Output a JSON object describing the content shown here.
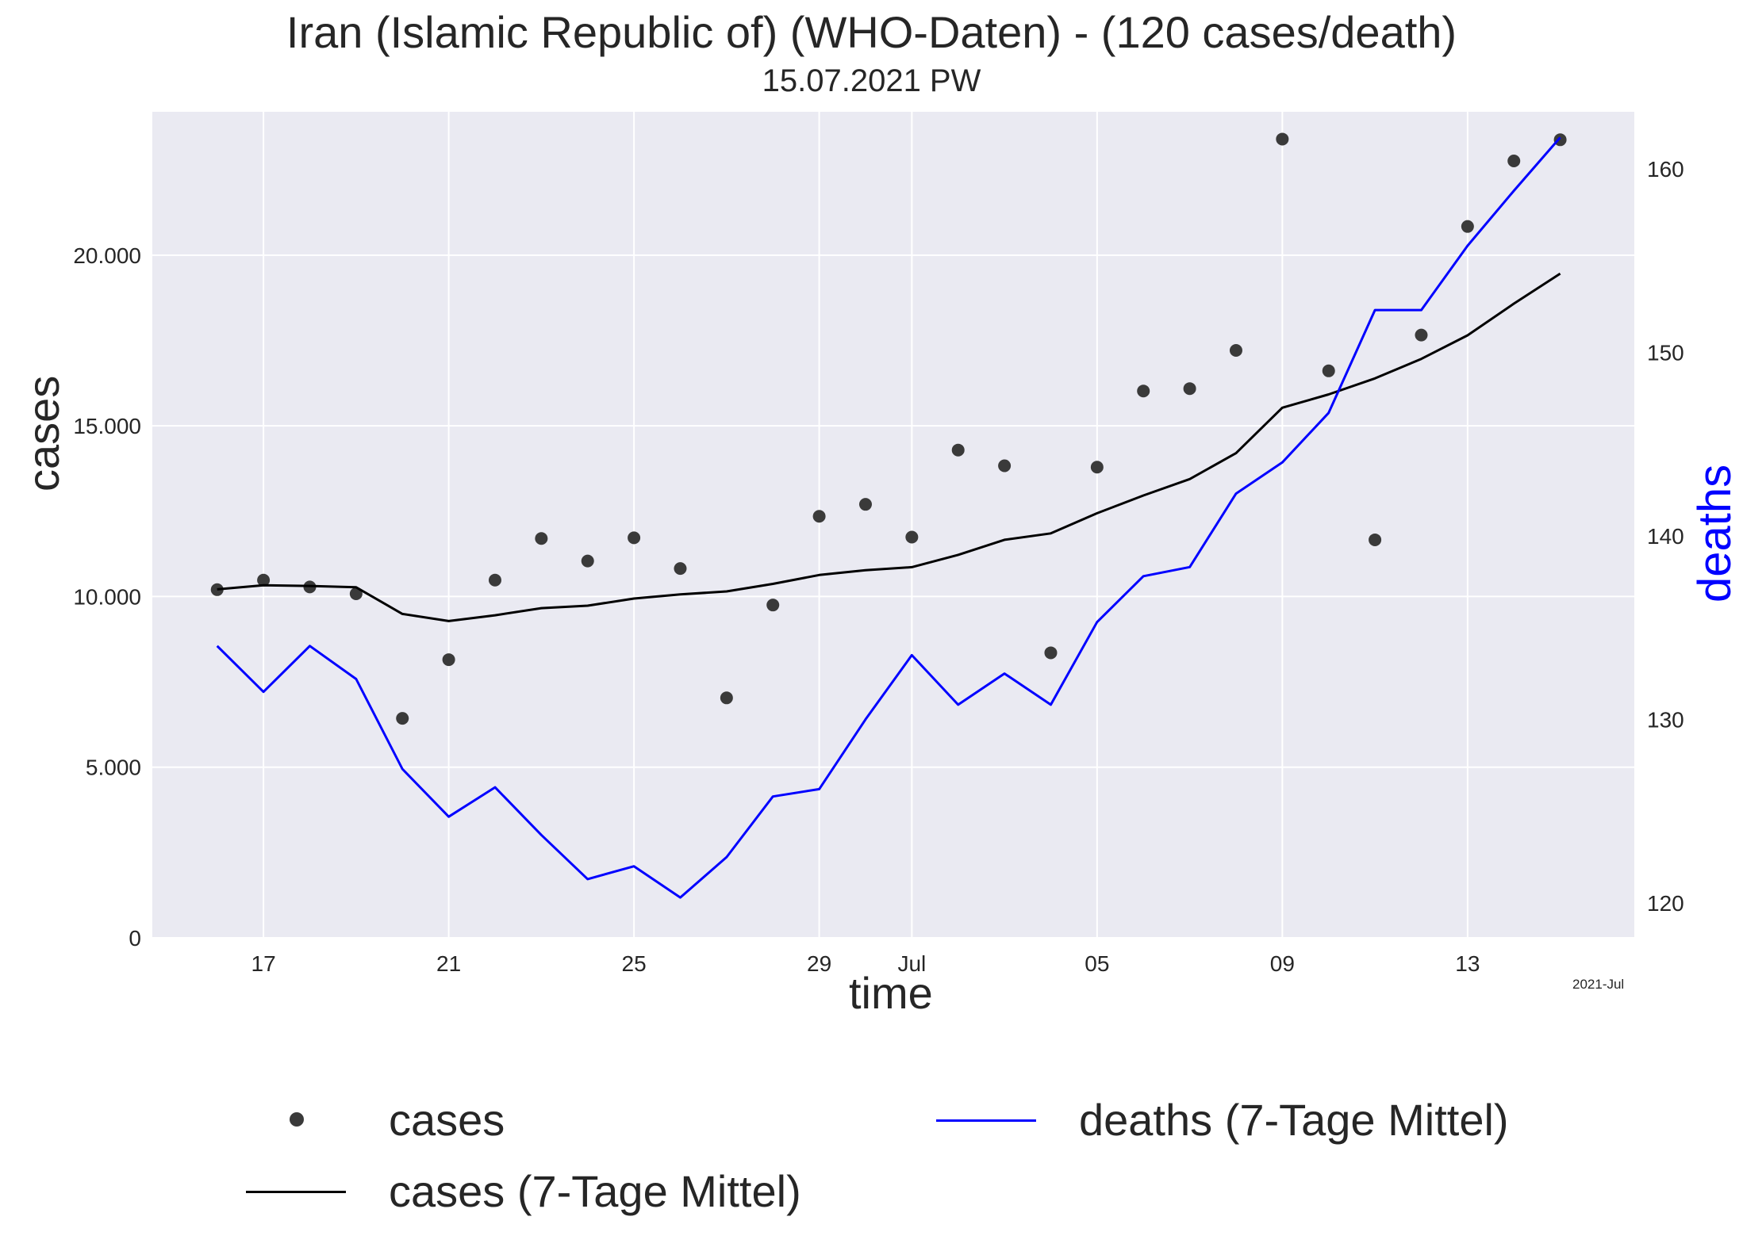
{
  "chart_data": {
    "type": "line",
    "title": "Iran (Islamic Republic of) (WHO-Daten) - (120 cases/death)",
    "subtitle": "15.07.2021 PW",
    "xlabel": "time",
    "ylabel": "cases",
    "y2label": "deaths",
    "x_corner_label": "2021-Jul",
    "grid": true,
    "legend_position": "bottom",
    "x_start_day_offset": 0,
    "x_dates": [
      "2021-06-16",
      "2021-06-17",
      "2021-06-18",
      "2021-06-19",
      "2021-06-20",
      "2021-06-21",
      "2021-06-22",
      "2021-06-23",
      "2021-06-24",
      "2021-06-25",
      "2021-06-26",
      "2021-06-27",
      "2021-06-28",
      "2021-06-29",
      "2021-06-30",
      "2021-07-01",
      "2021-07-02",
      "2021-07-03",
      "2021-07-04",
      "2021-07-05",
      "2021-07-06",
      "2021-07-07",
      "2021-07-08",
      "2021-07-09",
      "2021-07-10",
      "2021-07-11",
      "2021-07-12",
      "2021-07-13",
      "2021-07-14",
      "2021-07-15"
    ],
    "x_range_days": [
      -1.4,
      30.6
    ],
    "x_ticks": [
      {
        "day": 1,
        "label": "17"
      },
      {
        "day": 5,
        "label": "21"
      },
      {
        "day": 9,
        "label": "25"
      },
      {
        "day": 13,
        "label": "29"
      },
      {
        "day": 15,
        "label": "Jul"
      },
      {
        "day": 19,
        "label": "05"
      },
      {
        "day": 23,
        "label": "09"
      },
      {
        "day": 27,
        "label": "13"
      }
    ],
    "ylim": [
      0,
      24200
    ],
    "y_ticks": [
      {
        "value": 0,
        "label": "0"
      },
      {
        "value": 5000,
        "label": "5.000"
      },
      {
        "value": 10000,
        "label": "10.000"
      },
      {
        "value": 15000,
        "label": "15.000"
      },
      {
        "value": 20000,
        "label": "20.000"
      }
    ],
    "y2lim": [
      118.1,
      163.1
    ],
    "y2_ticks": [
      {
        "value": 120,
        "label": "120"
      },
      {
        "value": 130,
        "label": "130"
      },
      {
        "value": 140,
        "label": "140"
      },
      {
        "value": 150,
        "label": "150"
      },
      {
        "value": 160,
        "label": "160"
      }
    ],
    "series": [
      {
        "name": "cases",
        "kind": "scatter",
        "axis": "left",
        "color": "#3a3a3a",
        "values": [
          10200,
          10480,
          10280,
          10080,
          6430,
          8150,
          10480,
          11700,
          11040,
          11720,
          10820,
          7030,
          9750,
          12350,
          12700,
          11740,
          14290,
          13830,
          8350,
          13790,
          16020,
          16090,
          17210,
          23400,
          16610,
          11660,
          17660,
          20840,
          22760,
          23380
        ]
      },
      {
        "name": "cases (7-Tage Mittel)",
        "kind": "line",
        "axis": "left",
        "color": "#000000",
        "values": [
          10210,
          10330,
          10310,
          10270,
          9490,
          9280,
          9450,
          9660,
          9730,
          9940,
          10060,
          10150,
          10370,
          10630,
          10770,
          10860,
          11220,
          11660,
          11850,
          12440,
          12960,
          13440,
          14200,
          15530,
          15920,
          16390,
          16960,
          17650,
          18580,
          19460
        ]
      },
      {
        "name": "deaths (7-Tage Mittel)",
        "kind": "line",
        "axis": "right",
        "color": "#0000ff",
        "values": [
          134.0,
          131.5,
          134.0,
          132.2,
          127.3,
          124.7,
          126.3,
          123.7,
          121.3,
          122.0,
          120.3,
          122.5,
          125.8,
          126.2,
          130.0,
          133.5,
          130.8,
          132.5,
          130.8,
          135.3,
          137.8,
          138.3,
          142.3,
          144.0,
          146.7,
          152.3,
          152.3,
          155.8,
          158.8,
          161.7
        ]
      }
    ]
  },
  "legend": {
    "cases": "cases",
    "cases_avg": "cases (7-Tage Mittel)",
    "deaths_avg": "deaths (7-Tage Mittel)"
  }
}
